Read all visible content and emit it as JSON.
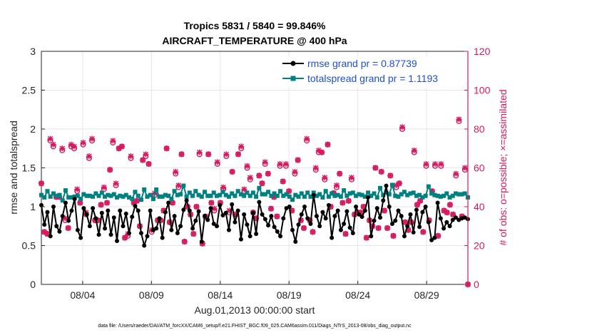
{
  "chart_data": {
    "type": "line",
    "title_line1": "Tropics 5831 / 5840 = 99.846%",
    "title_line2": "AIRCRAFT_TEMPERATURE @ 400 hPa",
    "xlabel": "Aug.01,2013 00:00:00 start",
    "ylabel_left": "rmse and totalspread",
    "ylabel_right": "# of obs: o=possible; ×=assimilated",
    "footer": "data file: /Users/raeder/DAI/ATM_forcXX/CAM6_setup/f.e21.FHIST_BGC.f09_025.CAM6assim.011/Diags_NTrS_2013-08/obs_diag_output.nc",
    "xlim": [
      1,
      32
    ],
    "ylim_left": [
      0,
      3
    ],
    "ylim_right": [
      0,
      120
    ],
    "x_ticks": [
      4,
      9,
      14,
      19,
      24,
      29
    ],
    "x_tick_labels": [
      "08/04",
      "08/09",
      "08/14",
      "08/19",
      "08/24",
      "08/29"
    ],
    "y_left_ticks": [
      "0",
      "0.5",
      "1",
      "1.5",
      "2",
      "2.5",
      "3"
    ],
    "y_right_ticks": [
      "0",
      "20",
      "40",
      "60",
      "80",
      "100",
      "120"
    ],
    "colors": {
      "rmse": "#000000",
      "spread": "#008080",
      "obs": "#d6185e",
      "grid": "#e6e6e6",
      "legend_text": "#1f4fd1"
    },
    "series": [
      {
        "name": "rmse grand pr = 0.87739",
        "axis": "left",
        "values": [
          1.02,
          0.77,
          0.93,
          0.62,
          1.0,
          0.75,
          0.68,
          0.88,
          1.05,
          0.82,
          0.95,
          1.1,
          0.7,
          0.6,
          0.98,
          0.9,
          0.75,
          0.98,
          0.85,
          0.64,
          0.92,
          0.72,
          0.95,
          0.64,
          0.86,
          0.56,
          0.95,
          0.75,
          0.91,
          0.66,
          0.87,
          1.01,
          0.95,
          0.66,
          0.5,
          0.62,
          0.95,
          0.7,
          0.72,
          0.85,
          0.6,
          0.93,
          1.05,
          0.7,
          0.88,
          0.66,
          0.75,
          0.96,
          1.08,
          0.95,
          0.72,
          0.82,
          0.94,
          0.55,
          0.88,
          0.83,
          0.98,
          0.78,
          0.75,
          1.02,
          0.89,
          0.92,
          0.7,
          1.03,
          0.8,
          0.95,
          0.58,
          0.9,
          0.77,
          0.62,
          0.92,
          0.65,
          1.06,
          0.9,
          0.84,
          0.76,
          0.88,
          0.74,
          0.68,
          0.62,
          0.85,
          0.98,
          1.0,
          0.7,
          0.55,
          0.77,
          0.9,
          1.0,
          0.85,
          0.78,
          1.15,
          0.88,
          0.75,
          0.93,
          0.85,
          1.02,
          0.6,
          0.88,
          0.95,
          0.7,
          0.78,
          0.94,
          0.73,
          0.66,
          1.0,
          0.9,
          0.87,
          0.95,
          1.12,
          0.62,
          0.82,
          0.98,
          0.86,
          1.08,
          1.27,
          1.0,
          0.78,
          0.82,
          0.95,
          0.88,
          0.62,
          0.75,
          0.9,
          0.67,
          0.96,
          0.74,
          0.93,
          1.0,
          0.8,
          0.57,
          0.6,
          1.05,
          0.85,
          0.72,
          0.8,
          0.75,
          0.83,
          0.86,
          0.83,
          0.85,
          0.86,
          0.84
        ]
      },
      {
        "name": "totalspread grand pr = 1.1193",
        "axis": "left",
        "values": [
          1.15,
          1.12,
          1.2,
          1.13,
          1.17,
          1.14,
          1.15,
          1.08,
          1.21,
          1.12,
          1.12,
          1.13,
          1.14,
          1.1,
          1.16,
          1.14,
          1.14,
          1.13,
          1.17,
          1.14,
          1.18,
          1.13,
          1.15,
          1.14,
          1.16,
          1.12,
          1.14,
          1.13,
          1.15,
          1.12,
          1.1,
          1.19,
          1.14,
          1.09,
          1.22,
          1.13,
          1.15,
          1.1,
          1.22,
          1.13,
          1.13,
          1.15,
          1.14,
          1.1,
          1.2,
          1.15,
          1.16,
          1.27,
          1.13,
          1.18,
          1.14,
          1.2,
          1.15,
          1.13,
          1.19,
          1.14,
          1.14,
          1.18,
          1.14,
          1.15,
          1.19,
          1.15,
          1.13,
          1.17,
          1.14,
          1.2,
          1.16,
          1.14,
          1.18,
          1.14,
          1.18,
          1.13,
          1.24,
          1.16,
          1.16,
          1.19,
          1.14,
          1.17,
          1.14,
          1.2,
          1.14,
          1.16,
          1.13,
          1.09,
          1.15,
          1.13,
          1.17,
          1.13,
          1.18,
          1.13,
          1.18,
          1.14,
          1.16,
          1.12,
          1.2,
          1.13,
          1.17,
          1.14,
          1.15,
          1.13,
          1.21,
          1.14,
          1.17,
          1.18,
          1.14,
          1.16,
          1.15,
          1.13,
          1.18,
          1.14,
          1.17,
          1.12,
          1.24,
          1.15,
          1.18,
          1.16,
          1.28,
          1.14,
          1.13,
          1.16,
          1.19,
          1.15,
          1.17,
          1.18,
          1.14,
          1.15,
          1.12,
          1.14,
          1.26,
          1.17,
          1.15,
          1.14,
          1.13,
          1.14,
          1.17,
          1.12,
          1.14,
          1.17,
          1.16,
          1.16,
          1.17,
          1.12
        ]
      }
    ],
    "obs_possible": [
      52,
      27,
      26,
      74,
      71,
      45,
      45,
      69,
      33,
      29,
      71,
      70,
      48,
      42,
      72,
      36,
      65,
      74,
      33,
      33,
      41,
      49,
      42,
      59,
      73,
      51,
      70,
      71,
      24,
      25,
      65,
      42,
      43,
      30,
      64,
      66,
      62,
      27,
      46,
      33,
      33,
      38,
      70,
      32,
      42,
      57,
      50,
      67,
      22,
      40,
      36,
      26,
      40,
      67,
      21,
      35,
      67,
      42,
      38,
      62,
      42,
      49,
      66,
      37,
      58,
      36,
      67,
      70,
      48,
      60,
      54,
      37,
      34,
      56,
      52,
      62,
      57,
      39,
      45,
      35,
      61,
      53,
      61,
      48,
      38,
      57,
      64,
      33,
      29,
      74,
      33,
      27,
      59,
      68,
      68,
      54,
      72,
      40,
      47,
      50,
      57,
      42,
      26,
      43,
      54,
      36,
      37,
      37,
      40,
      24,
      33,
      30,
      60,
      29,
      58,
      38,
      29,
      56,
      25,
      50,
      52,
      80,
      32,
      28,
      32,
      68,
      41,
      43,
      27,
      61,
      33,
      48,
      61,
      25,
      61,
      38,
      37,
      41,
      36,
      56,
      84,
      35,
      59,
      0
    ],
    "obs_assimilated": [
      52,
      27,
      26,
      75,
      72,
      45,
      45,
      70,
      34,
      29,
      72,
      71,
      49,
      42,
      73,
      37,
      66,
      75,
      33,
      33,
      41,
      50,
      42,
      59,
      74,
      52,
      70,
      71,
      24,
      26,
      66,
      42,
      43,
      30,
      64,
      67,
      62,
      28,
      47,
      33,
      33,
      38,
      70,
      32,
      42,
      58,
      51,
      67,
      22,
      40,
      36,
      26,
      40,
      68,
      21,
      35,
      67,
      42,
      39,
      63,
      42,
      50,
      67,
      38,
      58,
      36,
      67,
      71,
      49,
      61,
      55,
      37,
      34,
      56,
      52,
      63,
      57,
      39,
      45,
      35,
      62,
      53,
      62,
      48,
      38,
      58,
      64,
      33,
      29,
      75,
      33,
      27,
      60,
      69,
      68,
      55,
      72,
      40,
      47,
      51,
      57,
      42,
      26,
      43,
      55,
      36,
      37,
      37,
      40,
      24,
      33,
      30,
      60,
      29,
      58,
      38,
      29,
      56,
      25,
      51,
      52,
      81,
      32,
      28,
      32,
      69,
      41,
      43,
      27,
      62,
      33,
      48,
      62,
      25,
      62,
      38,
      37,
      41,
      36,
      57,
      85,
      35,
      60,
      0
    ]
  }
}
